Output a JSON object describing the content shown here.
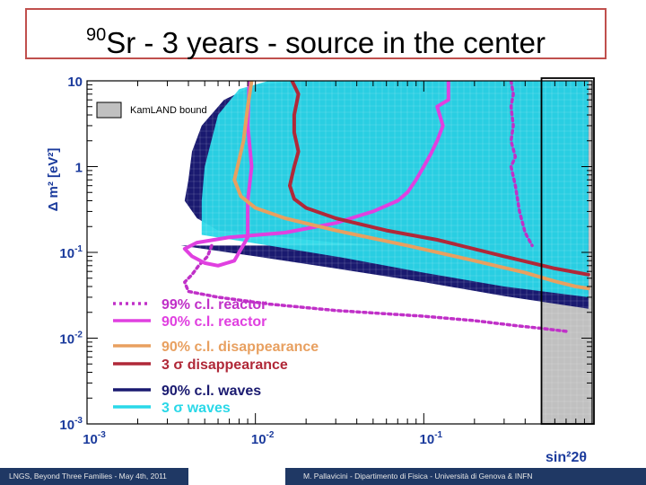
{
  "slide": {
    "title_superscript": "90",
    "title_main": "Sr - 3 years - source in the center",
    "footer_left": "LNGS, Beyond Three Families - May 4th, 2011",
    "footer_right": "M. Pallavicini - Dipartimento di Fisica - Università di Genova & INFN"
  },
  "chart_data": {
    "type": "line",
    "title": "",
    "xlabel": "sin²2θ",
    "ylabel": "Δ m² [eV²]",
    "xscale": "log",
    "yscale": "log",
    "xlim": [
      0.001,
      1
    ],
    "ylim": [
      0.001,
      10
    ],
    "x_tick_labels": [
      "10-3",
      "10-2",
      "10-1"
    ],
    "y_tick_labels": [
      "10",
      "1",
      "10-1",
      "10-2",
      "10-3"
    ],
    "grid": false,
    "legend_position": "bottom-left",
    "inset_label": "KamLAND bound",
    "colors": {
      "reactor99": "#c030c8",
      "reactor90": "#e040e0",
      "disapp90": "#e8a060",
      "disapp3sigma": "#b02838",
      "waves90": "#1a1a70",
      "waves3sigma": "#2ad8e8",
      "kamland": "#c0c0c0",
      "axis": "#1a3a9c"
    },
    "series": [
      {
        "name": "99% c.l. reactor",
        "color": "#c030c8",
        "style": "dotted",
        "x": [
          0.0055,
          0.0052,
          0.0046,
          0.0042,
          0.0038,
          0.004,
          0.006,
          0.012,
          0.03,
          0.1,
          0.2,
          0.35,
          0.5,
          0.7
        ],
        "y": [
          0.12,
          0.09,
          0.07,
          0.055,
          0.045,
          0.035,
          0.03,
          0.025,
          0.021,
          0.018,
          0.016,
          0.014,
          0.013,
          0.012
        ]
      },
      {
        "name": "99% c.l. reactor",
        "color": "#c030c8",
        "style": "dotted",
        "x": [
          0.33,
          0.34,
          0.33,
          0.34,
          0.33,
          0.35,
          0.33,
          0.35,
          0.37,
          0.4,
          0.44
        ],
        "y": [
          10,
          7,
          5,
          3,
          2,
          1.3,
          1,
          0.6,
          0.3,
          0.17,
          0.12
        ]
      },
      {
        "name": "90% c.l. reactor",
        "color": "#e040e0",
        "style": "solid",
        "x": [
          0.14,
          0.14,
          0.12,
          0.13,
          0.12,
          0.11,
          0.1,
          0.09,
          0.08,
          0.07,
          0.05,
          0.03,
          0.015,
          0.007,
          0.0045,
          0.0038,
          0.0042,
          0.005,
          0.006,
          0.0075,
          0.009,
          0.009,
          0.0095,
          0.009,
          0.0092
        ],
        "y": [
          10,
          6,
          5,
          3,
          2,
          1.4,
          1,
          0.7,
          0.5,
          0.4,
          0.3,
          0.22,
          0.17,
          0.15,
          0.13,
          0.11,
          0.09,
          0.075,
          0.07,
          0.08,
          0.15,
          0.4,
          1,
          3,
          10
        ]
      },
      {
        "name": "90% c.l. disappearance",
        "color": "#e8a060",
        "style": "solid",
        "x": [
          0.0095,
          0.009,
          0.0085,
          0.008,
          0.0075,
          0.0082,
          0.01,
          0.015,
          0.03,
          0.08,
          0.2,
          0.4,
          0.6,
          0.8,
          0.95
        ],
        "y": [
          10,
          5,
          2,
          1.2,
          0.7,
          0.45,
          0.33,
          0.25,
          0.18,
          0.12,
          0.08,
          0.058,
          0.046,
          0.04,
          0.038
        ]
      },
      {
        "name": "3 σ disappearance",
        "color": "#b02838",
        "style": "solid",
        "x": [
          0.0165,
          0.018,
          0.017,
          0.017,
          0.018,
          0.017,
          0.016,
          0.017,
          0.02,
          0.03,
          0.06,
          0.12,
          0.3,
          0.6,
          0.95
        ],
        "y": [
          10,
          7,
          4,
          2.5,
          1.5,
          1,
          0.6,
          0.42,
          0.33,
          0.25,
          0.18,
          0.14,
          0.09,
          0.065,
          0.055
        ]
      }
    ],
    "regions": [
      {
        "name": "90% c.l. waves",
        "color": "#1a1a70",
        "x": [
          0.0036,
          0.01,
          0.03,
          0.1,
          0.3,
          0.95,
          0.95,
          0.6,
          0.35,
          0.2,
          0.1,
          0.05,
          0.02,
          0.01,
          0.0065,
          0.0048,
          0.0042,
          0.004,
          0.0038,
          0.0045,
          0.006,
          0.015,
          0.03,
          0.06,
          0.12
        ],
        "y": [
          0.12,
          0.09,
          0.065,
          0.045,
          0.031,
          0.022,
          10,
          10,
          10,
          10,
          10,
          10,
          10,
          9,
          6,
          3,
          1.5,
          0.7,
          0.4,
          0.25,
          0.18,
          0.15,
          0.13,
          0.12,
          0.12
        ]
      },
      {
        "name": "3 σ waves",
        "color": "#2ad8e8",
        "x": [
          0.0048,
          0.012,
          0.035,
          0.1,
          0.3,
          0.95,
          0.95,
          0.12,
          0.03,
          0.012,
          0.008,
          0.006,
          0.005,
          0.0048
        ],
        "y": [
          0.16,
          0.12,
          0.085,
          0.058,
          0.04,
          0.03,
          10,
          10,
          10,
          10,
          8,
          4,
          1,
          0.4
        ]
      }
    ],
    "kamland_region": {
      "xlim": [
        0.5,
        1
      ],
      "ylim": [
        0.001,
        10
      ]
    }
  }
}
